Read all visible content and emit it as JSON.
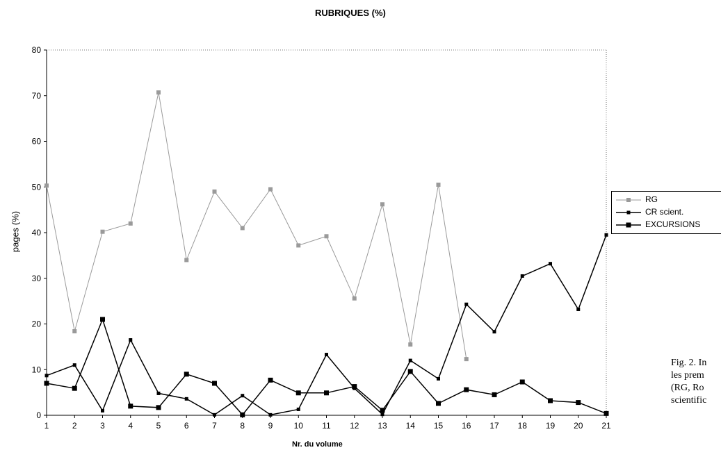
{
  "chart_data": {
    "type": "line",
    "title": "RUBRIQUES (%)",
    "xlabel": "Nr. du volume",
    "ylabel": "pages (%)",
    "x": [
      1,
      2,
      3,
      4,
      5,
      6,
      7,
      8,
      9,
      10,
      11,
      12,
      13,
      14,
      15,
      16,
      17,
      18,
      19,
      20,
      21
    ],
    "ylim": [
      0,
      80
    ],
    "yticks": [
      0,
      10,
      20,
      30,
      40,
      50,
      60,
      70,
      80
    ],
    "legend_position": "right",
    "series": [
      {
        "name": "RG",
        "color": "#9a9a9a",
        "marker": "star",
        "values": [
          50.3,
          18.4,
          40.2,
          42.0,
          70.7,
          34.0,
          49.0,
          41.0,
          49.5,
          37.2,
          39.2,
          25.6,
          46.2,
          15.5,
          50.5,
          12.3,
          null,
          null,
          null,
          null,
          null
        ]
      },
      {
        "name": "CR scient.",
        "color": "#000000",
        "marker": "small-square",
        "values": [
          8.7,
          11.0,
          1.0,
          16.5,
          4.8,
          3.6,
          0.1,
          4.3,
          0.1,
          1.3,
          13.3,
          5.9,
          0.2,
          12.0,
          8.0,
          24.3,
          18.3,
          30.5,
          33.2,
          23.2,
          39.5
        ]
      },
      {
        "name": "EXCURSIONS",
        "color": "#000000",
        "marker": "square",
        "values": [
          7.0,
          5.9,
          21.0,
          2.0,
          1.7,
          9.0,
          7.0,
          0.1,
          7.7,
          4.9,
          4.9,
          6.3,
          1.1,
          9.6,
          2.6,
          5.6,
          4.5,
          7.3,
          3.2,
          2.8,
          0.4
        ]
      }
    ]
  },
  "caption": {
    "lines": [
      "Fig. 2. In",
      "les prem",
      "(RG, Ro",
      "scientific"
    ]
  }
}
